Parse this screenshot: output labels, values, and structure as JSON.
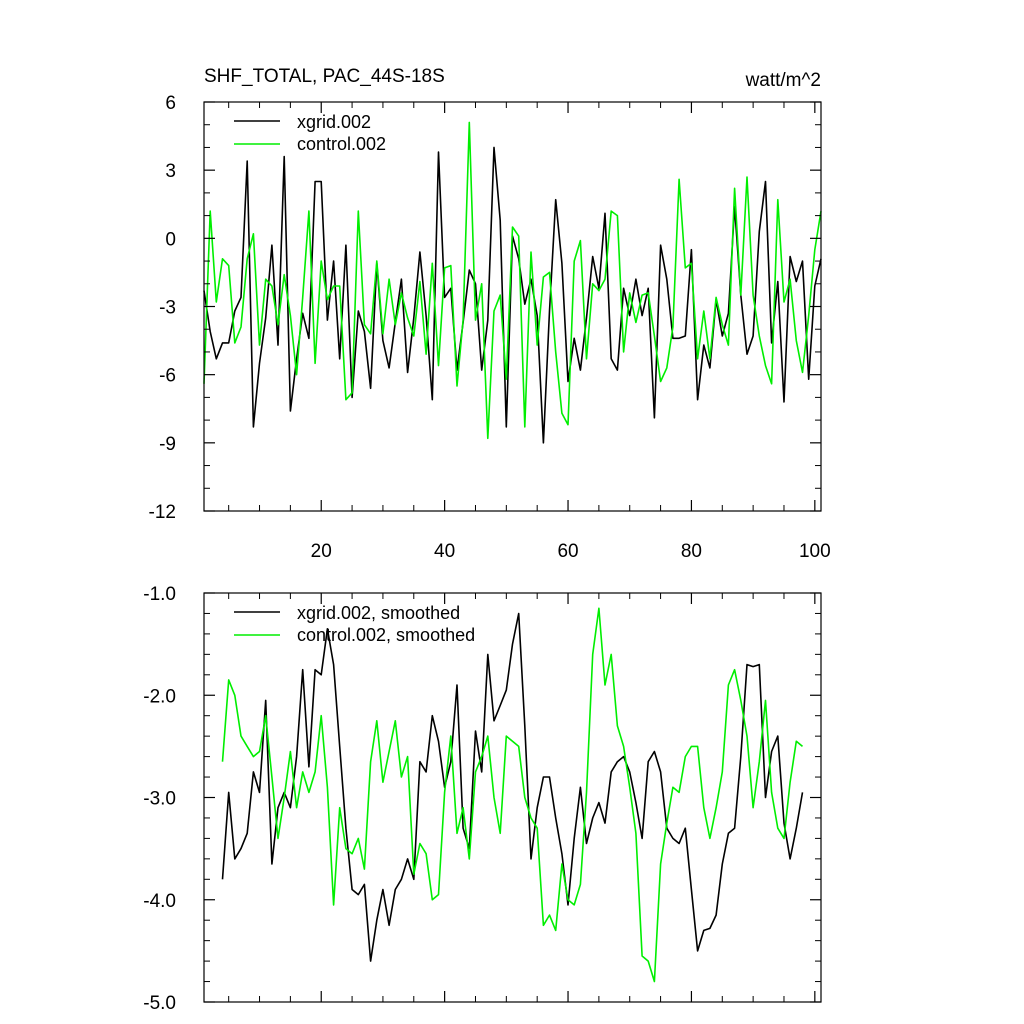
{
  "header": {
    "title": "SHF_TOTAL, PAC_44S-18S",
    "units": "watt/m^2"
  },
  "colors": {
    "xgrid": "#000000",
    "control": "#00ee00",
    "axis": "#000000"
  },
  "chart_data": [
    {
      "type": "line",
      "xlim": [
        1,
        101
      ],
      "ylim": [
        -12,
        6
      ],
      "grid": false,
      "legend_position": "top-left",
      "xticks": [
        20,
        40,
        60,
        80,
        100
      ],
      "xtick_labels": [
        "20",
        "40",
        "60",
        "80",
        "100"
      ],
      "xminor": [
        5,
        10,
        15,
        25,
        30,
        35,
        45,
        50,
        55,
        65,
        70,
        75,
        85,
        90,
        95
      ],
      "yticks": [
        -12,
        -9,
        -6,
        -3,
        0,
        3,
        6
      ],
      "ytick_labels": [
        "-12",
        "-9",
        "-6",
        "-3",
        "0",
        "3",
        "6"
      ],
      "yminor": [
        -11,
        -10,
        -8,
        -7,
        -5,
        -4,
        -2,
        -1,
        1,
        2,
        4,
        5
      ],
      "series": [
        {
          "name": "xgrid.002",
          "color": "#000000",
          "x": [
            1,
            2,
            3,
            4,
            5,
            6,
            7,
            8,
            9,
            10,
            11,
            12,
            13,
            14,
            15,
            16,
            17,
            18,
            19,
            20,
            21,
            22,
            23,
            24,
            25,
            26,
            27,
            28,
            29,
            30,
            31,
            32,
            33,
            34,
            35,
            36,
            37,
            38,
            39,
            40,
            41,
            42,
            43,
            44,
            45,
            46,
            47,
            48,
            49,
            50,
            51,
            52,
            53,
            54,
            55,
            56,
            57,
            58,
            59,
            60,
            61,
            62,
            63,
            64,
            65,
            66,
            67,
            68,
            69,
            70,
            71,
            72,
            73,
            74,
            75,
            76,
            77,
            78,
            79,
            80,
            81,
            82,
            83,
            84,
            85,
            86,
            87,
            88,
            89,
            90,
            91,
            92,
            93,
            94,
            95,
            96,
            97,
            98,
            99,
            100,
            101
          ],
          "values": [
            -2.3,
            -4.1,
            -5.3,
            -4.6,
            -4.6,
            -3.2,
            -2.6,
            3.4,
            -8.3,
            -5.5,
            -3.5,
            -0.3,
            -4.7,
            3.6,
            -7.6,
            -5.3,
            -3.3,
            -4.4,
            2.5,
            2.5,
            -3.6,
            -1.0,
            -5.3,
            -0.3,
            -7.0,
            -3.2,
            -4.1,
            -6.6,
            -1.1,
            -4.5,
            -5.7,
            -3.7,
            -1.8,
            -5.9,
            -3.5,
            -0.6,
            -3.4,
            -7.1,
            3.8,
            -2.6,
            -2.2,
            -5.8,
            -3.7,
            -1.4,
            -2.0,
            -5.8,
            -3.6,
            4.0,
            0.8,
            -8.3,
            0.1,
            -0.9,
            -2.9,
            -1.8,
            -3.4,
            -9.0,
            -3.2,
            1.7,
            -1.1,
            -6.3,
            -4.4,
            -5.8,
            -3.5,
            -0.8,
            -2.2,
            1.1,
            -5.3,
            -5.8,
            -2.2,
            -3.4,
            -1.8,
            -3.4,
            -2.2,
            -7.9,
            -0.3,
            -1.8,
            -4.4,
            -4.4,
            -4.3,
            -0.5,
            -7.1,
            -4.7,
            -5.7,
            -2.7,
            -4.3,
            -3.3,
            1.4,
            -2.5,
            -5.1,
            -4.3,
            0.3,
            2.5,
            -4.6,
            -1.9,
            -7.2,
            -0.8,
            -1.9,
            -1.0,
            -6.2,
            -2.1,
            -0.9
          ]
        },
        {
          "name": "control.002",
          "color": "#00ee00",
          "x": [
            1,
            2,
            3,
            4,
            5,
            6,
            7,
            8,
            9,
            10,
            11,
            12,
            13,
            14,
            15,
            16,
            17,
            18,
            19,
            20,
            21,
            22,
            23,
            24,
            25,
            26,
            27,
            28,
            29,
            30,
            31,
            32,
            33,
            34,
            35,
            36,
            37,
            38,
            39,
            40,
            41,
            42,
            43,
            44,
            45,
            46,
            47,
            48,
            49,
            50,
            51,
            52,
            53,
            54,
            55,
            56,
            57,
            58,
            59,
            60,
            61,
            62,
            63,
            64,
            65,
            66,
            67,
            68,
            69,
            70,
            71,
            72,
            73,
            74,
            75,
            76,
            77,
            78,
            79,
            80,
            81,
            82,
            83,
            84,
            85,
            86,
            87,
            88,
            89,
            90,
            91,
            92,
            93,
            94,
            95,
            96,
            97,
            98,
            99,
            100,
            101
          ],
          "values": [
            -6.4,
            1.2,
            -2.8,
            -0.9,
            -1.2,
            -4.6,
            -3.9,
            -0.9,
            0.2,
            -4.7,
            -1.8,
            -2.1,
            -3.8,
            -1.6,
            -3.4,
            -6.0,
            -2.6,
            1.2,
            -5.5,
            -1.0,
            -2.7,
            -2.1,
            -2.1,
            -7.1,
            -6.8,
            1.2,
            -3.8,
            -4.2,
            -1.0,
            -4.2,
            -1.8,
            -3.8,
            -2.4,
            -3.5,
            -4.3,
            -1.9,
            -5.1,
            -1.1,
            -5.6,
            -1.3,
            -1.2,
            -6.5,
            -3.6,
            5.1,
            -3.6,
            -2.0,
            -8.8,
            -3.2,
            -2.5,
            -6.2,
            0.5,
            0.1,
            -8.3,
            -0.6,
            -4.7,
            -1.7,
            -1.5,
            -5.0,
            -7.7,
            -8.2,
            -1.0,
            -0.1,
            -5.3,
            -2.0,
            -2.3,
            -1.8,
            1.2,
            1.0,
            -5.0,
            -2.4,
            -3.7,
            -2.5,
            -2.4,
            -4.3,
            -6.3,
            -5.7,
            -3.9,
            2.6,
            -1.3,
            -1.1,
            -5.3,
            -3.2,
            -5.3,
            -2.6,
            -3.8,
            -4.7,
            2.2,
            -2.5,
            2.7,
            -2.5,
            -4.3,
            -5.6,
            -6.4,
            1.7,
            -2.8,
            -1.8,
            -4.5,
            -5.9,
            -3.4,
            -0.5,
            1.2
          ]
        }
      ]
    },
    {
      "type": "line",
      "xlim": [
        1,
        101
      ],
      "ylim": [
        -5.0,
        -1.0
      ],
      "grid": false,
      "legend_position": "top-left",
      "xticks": [
        20,
        40,
        60,
        80,
        100
      ],
      "xtick_labels": [],
      "xminor": [
        5,
        10,
        15,
        25,
        30,
        35,
        45,
        50,
        55,
        65,
        70,
        75,
        85,
        90,
        95
      ],
      "yticks": [
        -5.0,
        -4.0,
        -3.0,
        -2.0,
        -1.0
      ],
      "ytick_labels": [
        "-5.0",
        "-4.0",
        "-3.0",
        "-2.0",
        "-1.0"
      ],
      "yminor": [
        -4.8,
        -4.6,
        -4.4,
        -4.2,
        -3.8,
        -3.6,
        -3.4,
        -3.2,
        -2.8,
        -2.6,
        -2.4,
        -2.2,
        -1.8,
        -1.6,
        -1.4,
        -1.2
      ],
      "series": [
        {
          "name": "xgrid.002, smoothed",
          "color": "#000000",
          "x": [
            4,
            5,
            6,
            7,
            8,
            9,
            10,
            11,
            12,
            13,
            14,
            15,
            16,
            17,
            18,
            19,
            20,
            21,
            22,
            23,
            24,
            25,
            26,
            27,
            28,
            29,
            30,
            31,
            32,
            33,
            34,
            35,
            36,
            37,
            38,
            39,
            40,
            41,
            42,
            43,
            44,
            45,
            46,
            47,
            48,
            49,
            50,
            51,
            52,
            53,
            54,
            55,
            56,
            57,
            58,
            59,
            60,
            61,
            62,
            63,
            64,
            65,
            66,
            67,
            68,
            69,
            70,
            71,
            72,
            73,
            74,
            75,
            76,
            77,
            78,
            79,
            80,
            81,
            82,
            83,
            84,
            85,
            86,
            87,
            88,
            89,
            90,
            91,
            92,
            93,
            94,
            95,
            96,
            97,
            98
          ],
          "values": [
            -3.8,
            -2.95,
            -3.6,
            -3.5,
            -3.35,
            -2.75,
            -2.95,
            -2.05,
            -3.65,
            -3.1,
            -2.95,
            -3.1,
            -2.6,
            -1.75,
            -2.7,
            -1.75,
            -1.8,
            -1.35,
            -1.7,
            -2.5,
            -3.3,
            -3.9,
            -3.95,
            -3.85,
            -4.6,
            -4.2,
            -3.9,
            -4.25,
            -3.9,
            -3.8,
            -3.6,
            -3.8,
            -2.65,
            -2.75,
            -2.2,
            -2.45,
            -2.9,
            -2.65,
            -1.9,
            -3.3,
            -3.5,
            -2.35,
            -2.75,
            -1.6,
            -2.25,
            -2.1,
            -1.95,
            -1.5,
            -1.2,
            -2.3,
            -3.6,
            -3.1,
            -2.8,
            -2.8,
            -3.2,
            -3.55,
            -4.05,
            -3.4,
            -2.9,
            -3.45,
            -3.2,
            -3.05,
            -3.25,
            -2.75,
            -2.65,
            -2.6,
            -2.75,
            -3.05,
            -3.4,
            -2.65,
            -2.55,
            -2.75,
            -3.3,
            -3.4,
            -3.45,
            -3.3,
            -3.9,
            -4.5,
            -4.3,
            -4.28,
            -4.15,
            -3.65,
            -3.35,
            -3.3,
            -2.6,
            -1.7,
            -1.72,
            -1.7,
            -3.0,
            -2.55,
            -2.4,
            -3.25,
            -3.6,
            -3.3,
            -2.95
          ]
        },
        {
          "name": "control.002, smoothed",
          "color": "#00ee00",
          "x": [
            4,
            5,
            6,
            7,
            8,
            9,
            10,
            11,
            12,
            13,
            14,
            15,
            16,
            17,
            18,
            19,
            20,
            21,
            22,
            23,
            24,
            25,
            26,
            27,
            28,
            29,
            30,
            31,
            32,
            33,
            34,
            35,
            36,
            37,
            38,
            39,
            40,
            41,
            42,
            43,
            44,
            45,
            46,
            47,
            48,
            49,
            50,
            51,
            52,
            53,
            54,
            55,
            56,
            57,
            58,
            59,
            60,
            61,
            62,
            63,
            64,
            65,
            66,
            67,
            68,
            69,
            70,
            71,
            72,
            73,
            74,
            75,
            76,
            77,
            78,
            79,
            80,
            81,
            82,
            83,
            84,
            85,
            86,
            87,
            88,
            89,
            90,
            91,
            92,
            93,
            94,
            95,
            96,
            97,
            98
          ],
          "values": [
            -2.65,
            -1.85,
            -2.0,
            -2.4,
            -2.5,
            -2.6,
            -2.55,
            -2.2,
            -2.8,
            -3.4,
            -3.0,
            -2.55,
            -3.1,
            -2.75,
            -2.95,
            -2.75,
            -2.2,
            -2.9,
            -4.05,
            -3.1,
            -3.5,
            -3.55,
            -3.4,
            -3.7,
            -2.65,
            -2.25,
            -2.85,
            -2.55,
            -2.25,
            -2.8,
            -2.6,
            -3.75,
            -3.45,
            -3.55,
            -4.0,
            -3.95,
            -2.95,
            -2.4,
            -3.35,
            -3.1,
            -3.6,
            -2.75,
            -2.6,
            -2.4,
            -3.0,
            -3.35,
            -2.4,
            -2.45,
            -2.5,
            -3.0,
            -3.2,
            -3.3,
            -4.25,
            -4.15,
            -4.3,
            -3.65,
            -4.0,
            -4.05,
            -3.85,
            -2.95,
            -1.6,
            -1.15,
            -1.9,
            -1.6,
            -2.3,
            -2.5,
            -2.9,
            -3.35,
            -4.55,
            -4.6,
            -4.8,
            -3.65,
            -3.25,
            -2.9,
            -2.95,
            -2.6,
            -2.5,
            -2.5,
            -3.1,
            -3.4,
            -3.1,
            -2.75,
            -1.9,
            -1.75,
            -2.05,
            -2.4,
            -3.1,
            -2.65,
            -2.05,
            -2.95,
            -3.3,
            -3.4,
            -2.85,
            -2.45,
            -2.5
          ]
        }
      ]
    }
  ]
}
